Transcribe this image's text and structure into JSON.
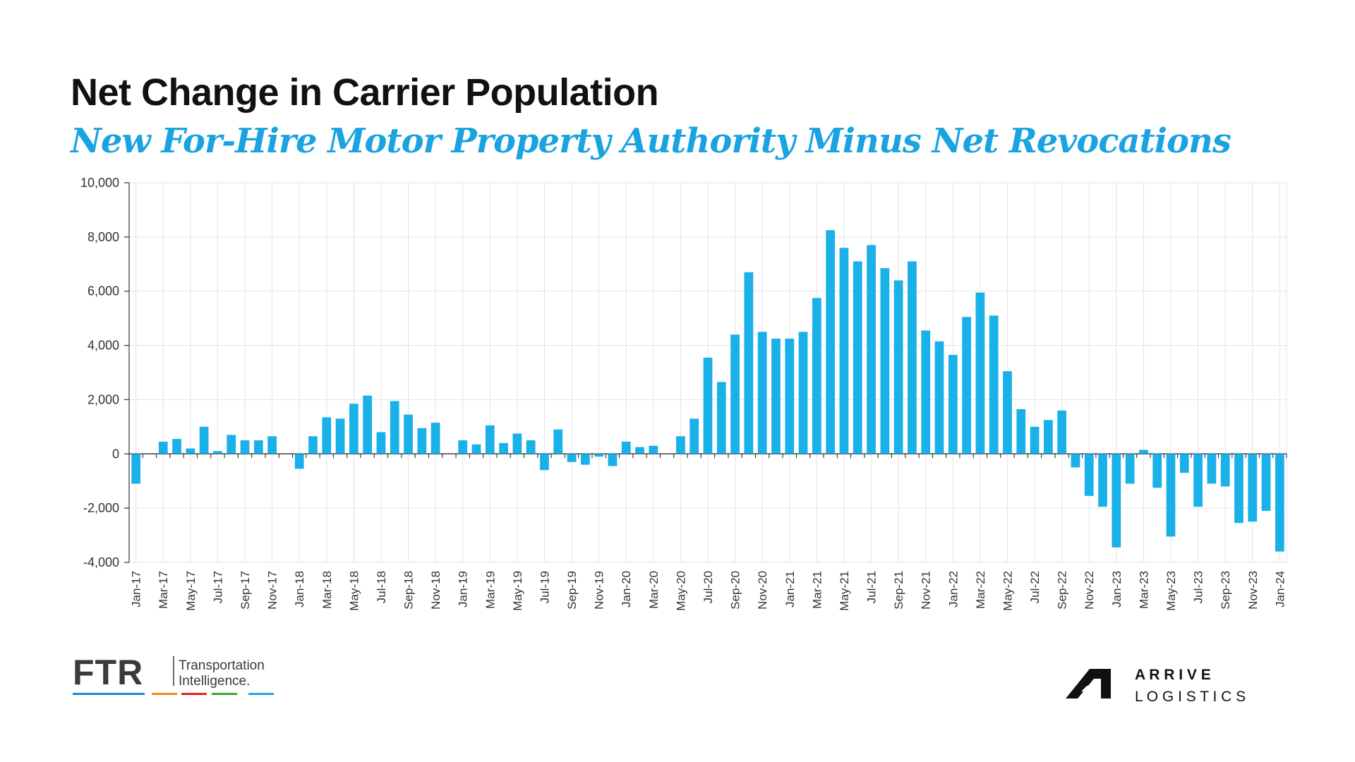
{
  "title": "Net Change in Carrier Population",
  "subtitle": "New For-Hire Motor Property Authority Minus Net Revocations",
  "colors": {
    "bar": "#1ab0e8",
    "subtitle": "#1aa3e0",
    "grid": "#e3e3e3"
  },
  "chart_data": {
    "type": "bar",
    "title": "Net Change in Carrier Population",
    "subtitle": "New For-Hire Motor Property Authority Minus Net Revocations",
    "xlabel": "",
    "ylabel": "",
    "ylim": [
      -4000,
      10000
    ],
    "yticks": [
      10000,
      8000,
      6000,
      4000,
      2000,
      0,
      -2000,
      -4000
    ],
    "ytick_labels": [
      "10,000",
      "8,000",
      "6,000",
      "4,000",
      "2,000",
      "0",
      "-2,000",
      "-4,000"
    ],
    "grid": true,
    "categories": [
      "Jan-17",
      "Feb-17",
      "Mar-17",
      "Apr-17",
      "May-17",
      "Jun-17",
      "Jul-17",
      "Aug-17",
      "Sep-17",
      "Oct-17",
      "Nov-17",
      "Dec-17",
      "Jan-18",
      "Feb-18",
      "Mar-18",
      "Apr-18",
      "May-18",
      "Jun-18",
      "Jul-18",
      "Aug-18",
      "Sep-18",
      "Oct-18",
      "Nov-18",
      "Dec-18",
      "Jan-19",
      "Feb-19",
      "Mar-19",
      "Apr-19",
      "May-19",
      "Jun-19",
      "Jul-19",
      "Aug-19",
      "Sep-19",
      "Oct-19",
      "Nov-19",
      "Dec-19",
      "Jan-20",
      "Feb-20",
      "Mar-20",
      "Apr-20",
      "May-20",
      "Jun-20",
      "Jul-20",
      "Aug-20",
      "Sep-20",
      "Oct-20",
      "Nov-20",
      "Dec-20",
      "Jan-21",
      "Feb-21",
      "Mar-21",
      "Apr-21",
      "May-21",
      "Jun-21",
      "Jul-21",
      "Aug-21",
      "Sep-21",
      "Oct-21",
      "Nov-21",
      "Dec-21",
      "Jan-22",
      "Feb-22",
      "Mar-22",
      "Apr-22",
      "May-22",
      "Jun-22",
      "Jul-22",
      "Aug-22",
      "Sep-22",
      "Oct-22",
      "Nov-22",
      "Dec-22",
      "Jan-23",
      "Feb-23",
      "Mar-23",
      "Apr-23",
      "May-23",
      "Jun-23",
      "Jul-23",
      "Aug-23",
      "Sep-23",
      "Oct-23",
      "Nov-23",
      "Dec-23",
      "Jan-24"
    ],
    "tick_label_indices": [
      0,
      2,
      4,
      6,
      8,
      10,
      12,
      14,
      16,
      18,
      20,
      22,
      24,
      26,
      28,
      30,
      32,
      34,
      36,
      38,
      40,
      42,
      44,
      46,
      48,
      50,
      52,
      54,
      56,
      58,
      60,
      62,
      64,
      66,
      68,
      70,
      72,
      74,
      76,
      78,
      80,
      82,
      84
    ],
    "values": [
      -1100,
      0,
      450,
      550,
      200,
      1000,
      100,
      700,
      500,
      500,
      650,
      0,
      -550,
      650,
      1350,
      1300,
      1850,
      2150,
      800,
      1950,
      1450,
      950,
      1150,
      0,
      500,
      350,
      1050,
      400,
      750,
      500,
      -600,
      900,
      -300,
      -400,
      -100,
      -450,
      450,
      250,
      300,
      0,
      650,
      1300,
      3550,
      2650,
      4400,
      6700,
      4500,
      4250,
      4250,
      4500,
      5750,
      8250,
      7600,
      7100,
      7700,
      6850,
      6400,
      7100,
      4550,
      4150,
      3650,
      5050,
      5950,
      5100,
      3050,
      1650,
      1000,
      1250,
      1600,
      -500,
      -1550,
      -1950,
      -3450,
      -1100,
      150,
      -1250,
      -3050,
      -700,
      -1950,
      -1100,
      -1200,
      -2550,
      -2500,
      -2100,
      -3600
    ]
  },
  "logos": {
    "ftr": {
      "mark": "FTR",
      "line1": "Transportation",
      "line2": "Intelligence."
    },
    "arrive": {
      "line1": "A R R I V E",
      "line2": "L O G I S T I C S"
    }
  }
}
